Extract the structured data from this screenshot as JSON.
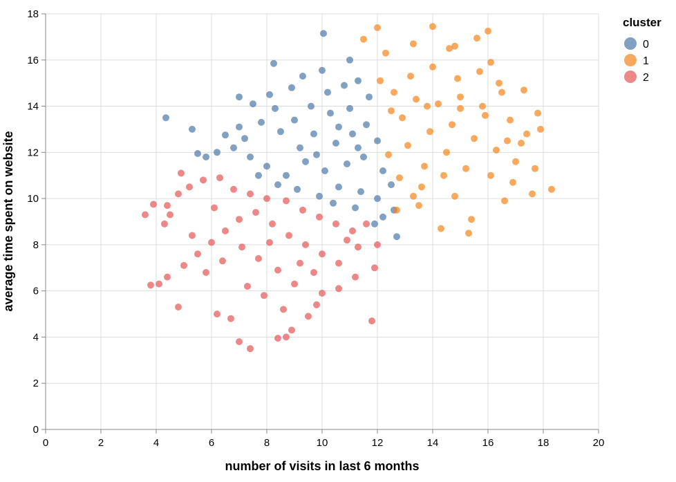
{
  "chart_data": {
    "type": "scatter",
    "title": "",
    "xlabel": "number of visits in last 6 months",
    "ylabel": "average time spent on website",
    "xlim": [
      0,
      20
    ],
    "ylim": [
      0,
      18
    ],
    "x_ticks": [
      0,
      2,
      4,
      6,
      8,
      10,
      12,
      14,
      16,
      18,
      20
    ],
    "y_ticks": [
      0,
      2,
      4,
      6,
      8,
      10,
      12,
      14,
      16,
      18
    ],
    "x_tick_labels": [
      "0",
      "2",
      "4",
      "6",
      "8",
      "10",
      "12",
      "14",
      "16",
      "18",
      "20"
    ],
    "y_tick_labels": [
      "0",
      "2",
      "4",
      "6",
      "8",
      "10",
      "12",
      "14",
      "16",
      "18"
    ],
    "grid": true,
    "legend": {
      "title": "cluster",
      "position": "top-right",
      "entries": [
        {
          "label": "0",
          "color": "#4c78a8"
        },
        {
          "label": "1",
          "color": "#f58518"
        },
        {
          "label": "2",
          "color": "#e45756"
        }
      ]
    },
    "series": [
      {
        "name": "0",
        "color": "#4c78a8",
        "points": [
          [
            10.05,
            17.15
          ],
          [
            8.25,
            15.85
          ],
          [
            4.35,
            13.5
          ],
          [
            5.3,
            13.0
          ],
          [
            6.5,
            12.75
          ],
          [
            5.5,
            11.95
          ],
          [
            5.8,
            11.8
          ],
          [
            6.2,
            12.0
          ],
          [
            7.0,
            14.4
          ],
          [
            7.5,
            14.1
          ],
          [
            9.3,
            15.3
          ],
          [
            10.0,
            15.55
          ],
          [
            10.8,
            14.9
          ],
          [
            11.0,
            16.0
          ],
          [
            11.3,
            15.1
          ],
          [
            7.2,
            12.6
          ],
          [
            7.8,
            13.3
          ],
          [
            8.5,
            12.9
          ],
          [
            9.2,
            12.2
          ],
          [
            9.8,
            11.9
          ],
          [
            10.5,
            12.4
          ],
          [
            11.1,
            12.8
          ],
          [
            11.6,
            13.2
          ],
          [
            8.0,
            11.4
          ],
          [
            8.7,
            11.0
          ],
          [
            9.4,
            11.6
          ],
          [
            10.1,
            11.2
          ],
          [
            10.9,
            11.5
          ],
          [
            11.5,
            11.8
          ],
          [
            12.0,
            12.5
          ],
          [
            12.2,
            11.2
          ],
          [
            12.5,
            10.6
          ],
          [
            12.0,
            10.0
          ],
          [
            11.4,
            10.3
          ],
          [
            10.6,
            10.5
          ],
          [
            9.9,
            10.1
          ],
          [
            9.1,
            10.4
          ],
          [
            8.4,
            10.6
          ],
          [
            7.7,
            11.0
          ],
          [
            7.4,
            11.8
          ],
          [
            8.1,
            14.5
          ],
          [
            8.9,
            14.8
          ],
          [
            9.6,
            14.0
          ],
          [
            10.3,
            13.7
          ],
          [
            11.0,
            13.9
          ],
          [
            11.7,
            14.4
          ],
          [
            12.6,
            9.5
          ],
          [
            12.2,
            9.2
          ],
          [
            11.9,
            8.9
          ],
          [
            12.7,
            8.35
          ],
          [
            11.2,
            9.6
          ],
          [
            10.4,
            9.8
          ],
          [
            7.0,
            13.1
          ],
          [
            6.8,
            12.2
          ],
          [
            8.3,
            13.9
          ],
          [
            9.0,
            13.4
          ],
          [
            9.7,
            12.8
          ],
          [
            10.6,
            13.1
          ],
          [
            11.3,
            12.2
          ],
          [
            10.2,
            14.6
          ]
        ]
      },
      {
        "name": "1",
        "color": "#f58518",
        "points": [
          [
            12.0,
            17.4
          ],
          [
            14.0,
            17.45
          ],
          [
            16.0,
            17.25
          ],
          [
            11.5,
            16.9
          ],
          [
            15.6,
            16.95
          ],
          [
            13.3,
            16.7
          ],
          [
            14.8,
            16.6
          ],
          [
            12.3,
            16.3
          ],
          [
            16.1,
            15.9
          ],
          [
            12.1,
            15.1
          ],
          [
            12.6,
            14.6
          ],
          [
            13.4,
            14.3
          ],
          [
            14.2,
            14.1
          ],
          [
            15.0,
            14.4
          ],
          [
            15.8,
            14.0
          ],
          [
            16.5,
            14.6
          ],
          [
            17.3,
            14.7
          ],
          [
            17.8,
            13.7
          ],
          [
            18.3,
            10.4
          ],
          [
            17.6,
            10.2
          ],
          [
            16.9,
            10.7
          ],
          [
            16.6,
            9.9
          ],
          [
            15.3,
            8.5
          ],
          [
            14.3,
            8.7
          ],
          [
            15.4,
            9.1
          ],
          [
            14.8,
            10.1
          ],
          [
            13.6,
            10.5
          ],
          [
            12.8,
            10.9
          ],
          [
            12.4,
            11.9
          ],
          [
            13.1,
            12.3
          ],
          [
            13.9,
            12.9
          ],
          [
            14.7,
            13.2
          ],
          [
            15.5,
            12.6
          ],
          [
            16.3,
            12.1
          ],
          [
            17.0,
            11.6
          ],
          [
            17.4,
            12.8
          ],
          [
            17.9,
            13.0
          ],
          [
            16.8,
            13.4
          ],
          [
            15.9,
            13.6
          ],
          [
            14.5,
            12.0
          ],
          [
            13.7,
            11.4
          ],
          [
            12.9,
            13.5
          ],
          [
            12.5,
            13.8
          ],
          [
            13.2,
            15.3
          ],
          [
            14.0,
            15.7
          ],
          [
            14.9,
            15.2
          ],
          [
            15.7,
            15.5
          ],
          [
            16.4,
            15.0
          ],
          [
            17.2,
            12.4
          ],
          [
            16.1,
            11.0
          ],
          [
            15.2,
            11.3
          ],
          [
            14.4,
            11.0
          ],
          [
            13.3,
            10.1
          ],
          [
            12.7,
            9.5
          ],
          [
            13.5,
            9.7
          ],
          [
            17.7,
            11.3
          ],
          [
            16.7,
            12.5
          ],
          [
            15.0,
            13.9
          ],
          [
            13.8,
            14.0
          ],
          [
            14.6,
            16.5
          ]
        ]
      },
      {
        "name": "2",
        "color": "#e45756",
        "points": [
          [
            3.6,
            9.3
          ],
          [
            3.9,
            9.75
          ],
          [
            4.4,
            9.7
          ],
          [
            4.5,
            9.3
          ],
          [
            4.8,
            10.2
          ],
          [
            4.9,
            11.1
          ],
          [
            5.2,
            10.5
          ],
          [
            5.7,
            10.8
          ],
          [
            6.3,
            10.9
          ],
          [
            6.8,
            10.4
          ],
          [
            7.4,
            10.2
          ],
          [
            8.0,
            10.0
          ],
          [
            8.7,
            9.9
          ],
          [
            9.3,
            9.5
          ],
          [
            9.9,
            9.2
          ],
          [
            10.5,
            8.9
          ],
          [
            11.1,
            8.6
          ],
          [
            11.6,
            8.9
          ],
          [
            12.0,
            8.0
          ],
          [
            11.9,
            7.0
          ],
          [
            11.2,
            6.6
          ],
          [
            10.6,
            6.1
          ],
          [
            10.0,
            5.9
          ],
          [
            9.5,
            4.9
          ],
          [
            9.8,
            5.4
          ],
          [
            11.8,
            4.7
          ],
          [
            8.9,
            4.3
          ],
          [
            8.4,
            3.95
          ],
          [
            8.7,
            4.0
          ],
          [
            7.4,
            3.5
          ],
          [
            7.0,
            3.8
          ],
          [
            6.7,
            4.8
          ],
          [
            6.2,
            5.0
          ],
          [
            4.8,
            5.3
          ],
          [
            3.8,
            6.25
          ],
          [
            4.1,
            6.3
          ],
          [
            4.4,
            6.6
          ],
          [
            5.0,
            7.1
          ],
          [
            5.5,
            7.6
          ],
          [
            6.0,
            8.1
          ],
          [
            6.5,
            8.6
          ],
          [
            7.0,
            9.1
          ],
          [
            7.6,
            9.4
          ],
          [
            8.2,
            8.9
          ],
          [
            8.8,
            8.4
          ],
          [
            9.4,
            8.0
          ],
          [
            10.0,
            7.6
          ],
          [
            10.6,
            7.2
          ],
          [
            11.3,
            7.9
          ],
          [
            10.9,
            8.2
          ],
          [
            9.7,
            6.8
          ],
          [
            9.0,
            6.3
          ],
          [
            8.4,
            6.9
          ],
          [
            7.7,
            7.4
          ],
          [
            7.1,
            7.9
          ],
          [
            6.4,
            7.3
          ],
          [
            5.8,
            6.8
          ],
          [
            5.3,
            8.4
          ],
          [
            6.1,
            9.6
          ],
          [
            4.3,
            8.9
          ],
          [
            7.9,
            5.8
          ],
          [
            8.6,
            5.2
          ],
          [
            7.3,
            6.2
          ],
          [
            9.2,
            7.2
          ],
          [
            8.1,
            8.1
          ]
        ]
      }
    ]
  }
}
